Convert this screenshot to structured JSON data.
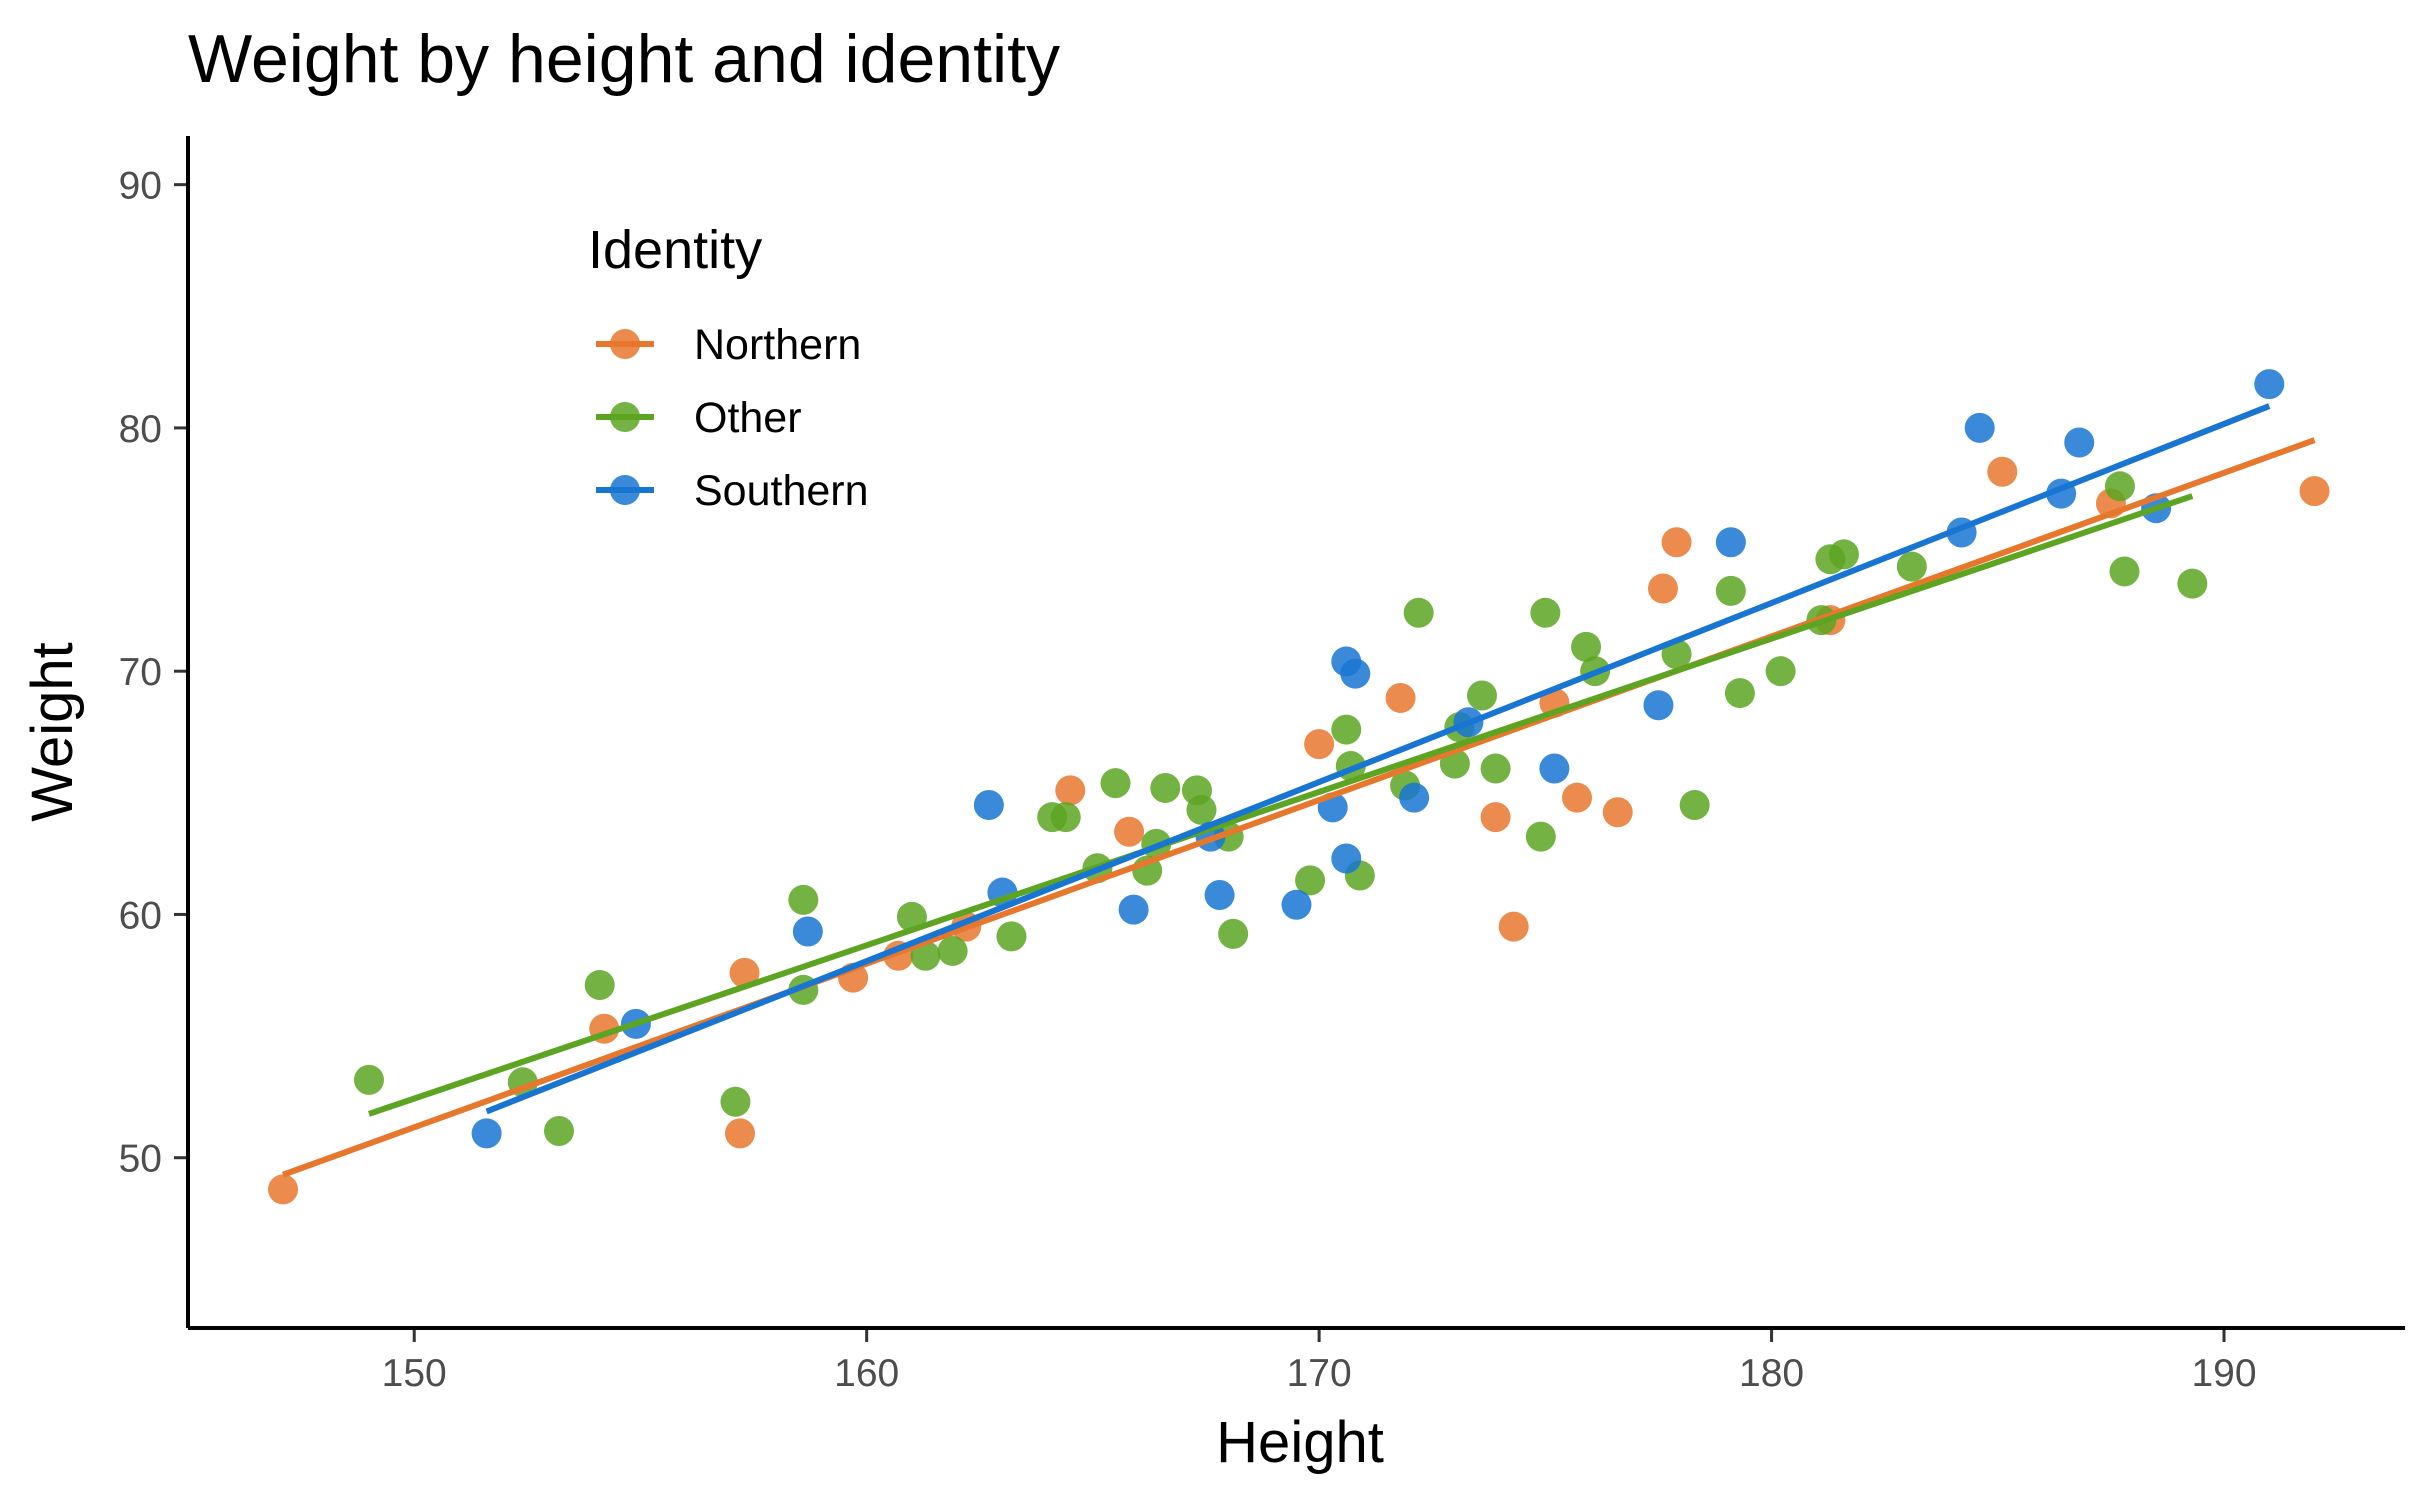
{
  "chart_data": {
    "type": "scatter",
    "title": "Weight by height and identity",
    "xlabel": "Height",
    "ylabel": "Weight",
    "xlim": [
      145,
      194
    ],
    "ylim": [
      43,
      92
    ],
    "xticks": [
      150,
      160,
      170,
      180,
      190
    ],
    "yticks": [
      50,
      60,
      70,
      80,
      90
    ],
    "grid": false,
    "legend": {
      "title": "Identity",
      "position": "top-left-inside"
    },
    "series": [
      {
        "name": "Northern",
        "color": "#E8772E",
        "points": [
          [
            147.1,
            48.7
          ],
          [
            154.2,
            55.3
          ],
          [
            157.2,
            51.0
          ],
          [
            157.3,
            57.6
          ],
          [
            159.7,
            57.4
          ],
          [
            160.7,
            58.3
          ],
          [
            162.2,
            59.5
          ],
          [
            164.5,
            65.1
          ],
          [
            165.8,
            63.4
          ],
          [
            170.0,
            67.0
          ],
          [
            171.8,
            68.9
          ],
          [
            173.9,
            64.0
          ],
          [
            174.3,
            59.5
          ],
          [
            175.2,
            68.7
          ],
          [
            175.7,
            64.8
          ],
          [
            176.6,
            64.2
          ],
          [
            177.6,
            73.4
          ],
          [
            177.9,
            75.3
          ],
          [
            181.3,
            72.1
          ],
          [
            185.1,
            78.2
          ],
          [
            187.5,
            76.9
          ],
          [
            192.0,
            77.4
          ]
        ],
        "trend": {
          "x": [
            147.1,
            192.0
          ],
          "y": [
            49.3,
            79.5
          ]
        }
      },
      {
        "name": "Other",
        "color": "#5DA423",
        "points": [
          [
            149.0,
            53.2
          ],
          [
            152.4,
            53.1
          ],
          [
            153.2,
            51.1
          ],
          [
            154.1,
            57.1
          ],
          [
            157.1,
            52.3
          ],
          [
            158.6,
            60.6
          ],
          [
            158.6,
            56.9
          ],
          [
            161.0,
            59.9
          ],
          [
            161.3,
            58.3
          ],
          [
            161.9,
            58.5
          ],
          [
            163.2,
            59.1
          ],
          [
            164.1,
            64.0
          ],
          [
            164.4,
            64.0
          ],
          [
            165.1,
            61.9
          ],
          [
            165.5,
            65.4
          ],
          [
            166.2,
            61.8
          ],
          [
            166.4,
            62.9
          ],
          [
            166.6,
            65.2
          ],
          [
            167.3,
            65.1
          ],
          [
            167.4,
            64.3
          ],
          [
            168.0,
            63.2
          ],
          [
            168.1,
            59.2
          ],
          [
            169.8,
            61.4
          ],
          [
            170.6,
            67.6
          ],
          [
            170.7,
            66.1
          ],
          [
            170.9,
            61.6
          ],
          [
            171.9,
            65.3
          ],
          [
            172.2,
            72.4
          ],
          [
            173.0,
            66.2
          ],
          [
            173.1,
            67.7
          ],
          [
            173.6,
            69.0
          ],
          [
            173.9,
            66.0
          ],
          [
            174.9,
            63.2
          ],
          [
            175.0,
            72.4
          ],
          [
            175.9,
            71.0
          ],
          [
            176.1,
            70.0
          ],
          [
            177.9,
            70.7
          ],
          [
            178.3,
            64.5
          ],
          [
            179.1,
            73.3
          ],
          [
            179.3,
            69.1
          ],
          [
            180.2,
            70.0
          ],
          [
            181.1,
            72.1
          ],
          [
            181.3,
            74.6
          ],
          [
            181.6,
            74.8
          ],
          [
            183.1,
            74.3
          ],
          [
            187.7,
            77.6
          ],
          [
            187.8,
            74.1
          ],
          [
            189.3,
            73.6
          ]
        ],
        "trend": {
          "x": [
            149.0,
            189.3
          ],
          "y": [
            51.8,
            77.2
          ]
        }
      },
      {
        "name": "Southern",
        "color": "#1975D2",
        "points": [
          [
            151.6,
            51.0
          ],
          [
            154.9,
            55.5
          ],
          [
            158.7,
            59.3
          ],
          [
            162.7,
            64.5
          ],
          [
            163.0,
            60.9
          ],
          [
            165.9,
            60.2
          ],
          [
            167.6,
            63.2
          ],
          [
            167.8,
            60.8
          ],
          [
            169.5,
            60.4
          ],
          [
            170.3,
            64.4
          ],
          [
            170.6,
            62.3
          ],
          [
            170.6,
            70.4
          ],
          [
            170.8,
            69.9
          ],
          [
            172.1,
            64.8
          ],
          [
            173.3,
            67.9
          ],
          [
            175.2,
            66.0
          ],
          [
            177.5,
            68.6
          ],
          [
            179.1,
            75.3
          ],
          [
            184.2,
            75.7
          ],
          [
            184.6,
            80.0
          ],
          [
            186.4,
            77.3
          ],
          [
            186.8,
            79.4
          ],
          [
            188.5,
            76.7
          ],
          [
            191.0,
            81.8
          ]
        ],
        "trend": {
          "x": [
            151.6,
            191.0
          ],
          "y": [
            51.9,
            80.9
          ]
        }
      }
    ]
  }
}
